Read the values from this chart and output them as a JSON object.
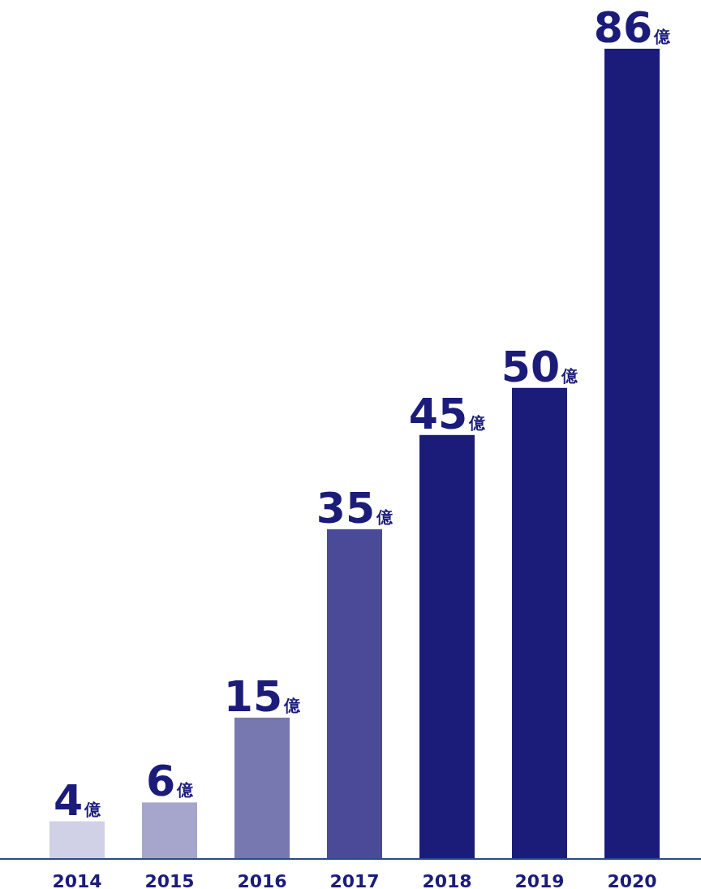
{
  "chart_data": {
    "type": "bar",
    "categories": [
      "2014",
      "2015",
      "2016",
      "2017",
      "2018",
      "2019",
      "2020"
    ],
    "values": [
      4,
      6,
      15,
      35,
      45,
      50,
      86
    ],
    "colors": [
      "#d0d0e6",
      "#a6a6cc",
      "#7878b0",
      "#4a4a98",
      "#1b1c7a",
      "#1b1c7a",
      "#1b1c7a"
    ],
    "value_labels": [
      "4億",
      "6億",
      "15億",
      "35億",
      "45億",
      "50億",
      "86億"
    ]
  }
}
